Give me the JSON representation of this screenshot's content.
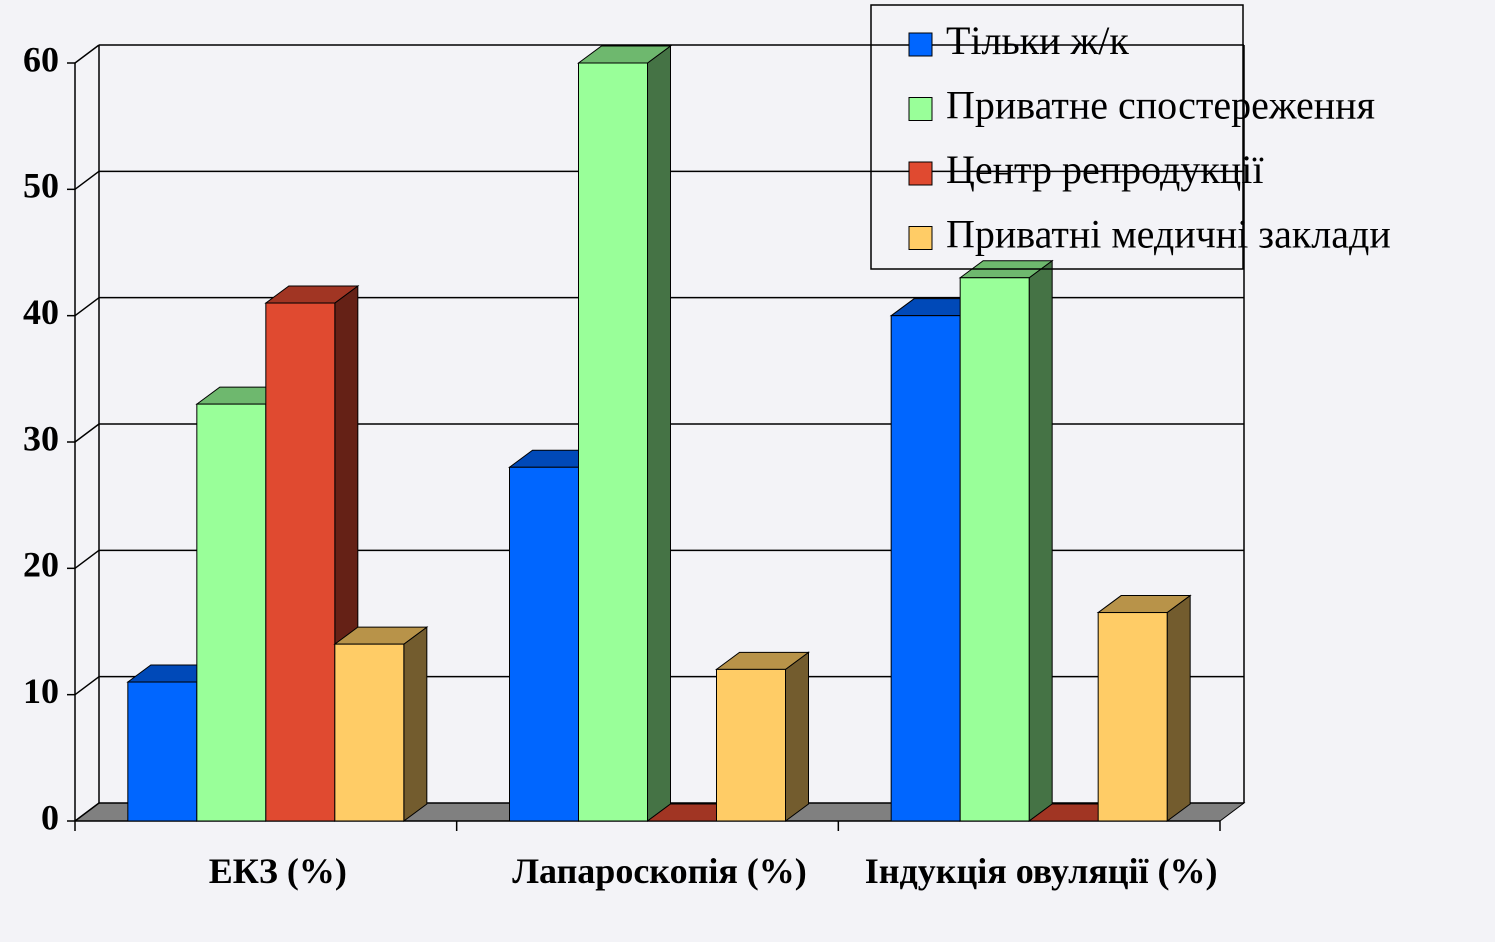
{
  "chart_data": {
    "type": "bar3d",
    "categories": [
      "ЕКЗ (%)",
      "Лапароскопія (%)",
      "Індукція овуляції (%)"
    ],
    "series": [
      {
        "name": "Тільки ж/к",
        "color": "#0066ff",
        "values": [
          11,
          28,
          40
        ]
      },
      {
        "name": "Приватне спостереження",
        "color": "#99ff99",
        "values": [
          33,
          60,
          43
        ]
      },
      {
        "name": "Центр репродукції",
        "color": "#e04a30",
        "values": [
          41,
          0,
          0
        ]
      },
      {
        "name": "Приватні медичні заклади",
        "color": "#ffcc66",
        "values": [
          14,
          12,
          16.5
        ]
      }
    ],
    "ylim": [
      0,
      60
    ],
    "yticks": [
      0,
      10,
      20,
      30,
      40,
      50,
      60
    ],
    "grid": true,
    "legend": "top-right"
  }
}
